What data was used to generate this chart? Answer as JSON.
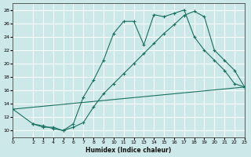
{
  "bg_color": "#cce8e8",
  "grid_color": "#ffffff",
  "line_color": "#1a7060",
  "xlabel": "Humidex (Indice chaleur)",
  "xlim": [
    0,
    23
  ],
  "ylim": [
    9,
    29
  ],
  "xticks": [
    0,
    2,
    3,
    4,
    5,
    6,
    7,
    8,
    9,
    10,
    11,
    12,
    13,
    14,
    15,
    16,
    17,
    18,
    19,
    20,
    21,
    22,
    23
  ],
  "yticks": [
    10,
    12,
    14,
    16,
    18,
    20,
    22,
    24,
    26,
    28
  ],
  "line1_x": [
    2,
    3,
    4,
    5,
    6,
    7,
    8,
    9,
    10,
    11,
    12,
    13,
    14,
    15,
    16,
    17,
    18,
    19,
    20,
    21,
    22,
    23
  ],
  "line1_y": [
    11,
    10.5,
    10.5,
    10,
    11,
    15,
    17.5,
    20.5,
    24.5,
    26.3,
    26.3,
    22.8,
    27.3,
    27.0,
    27.5,
    28.0,
    24.0,
    22.0,
    20.5,
    19.0,
    17.0,
    16.5
  ],
  "line2_x": [
    0,
    2,
    3,
    4,
    5,
    6,
    7,
    8,
    9,
    10,
    11,
    12,
    13,
    14,
    15,
    16,
    17,
    18,
    19,
    20,
    21,
    22,
    23
  ],
  "line2_y": [
    13.2,
    11,
    10.7,
    10.3,
    10,
    10.5,
    11.2,
    13.5,
    15.5,
    17.0,
    18.5,
    20.0,
    21.5,
    23.0,
    24.5,
    25.8,
    27.2,
    27.8,
    27.0,
    22.0,
    20.5,
    19.0,
    16.5
  ],
  "line3_x": [
    0,
    23
  ],
  "line3_y": [
    13.2,
    16.5
  ],
  "figsize": [
    3.2,
    2.0
  ],
  "dpi": 100
}
